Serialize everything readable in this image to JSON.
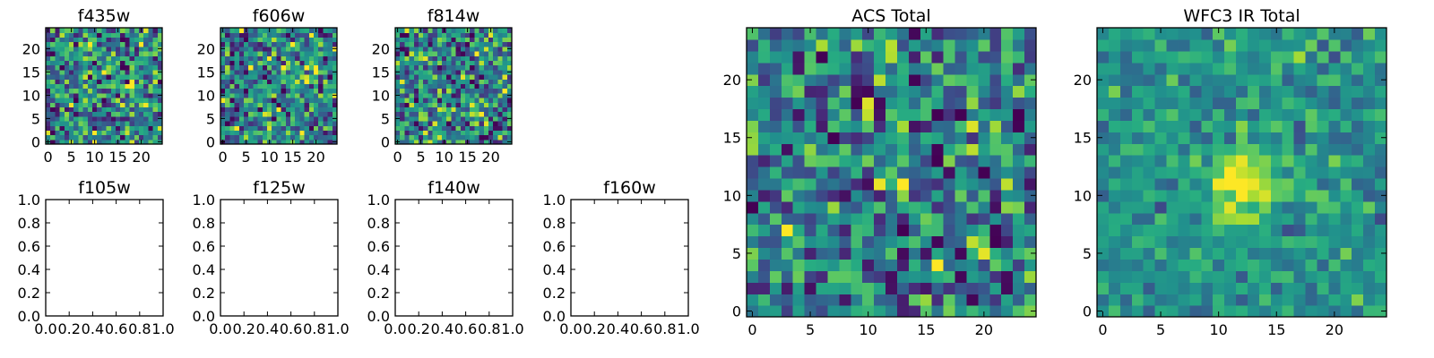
{
  "figure": {
    "background": "#ffffff",
    "colormap": "viridis",
    "panels": [
      {
        "id": "f435w",
        "title": "f435w"
      },
      {
        "id": "f606w",
        "title": "f606w"
      },
      {
        "id": "f814w",
        "title": "f814w"
      },
      {
        "id": "f105w",
        "title": "f105w"
      },
      {
        "id": "f125w",
        "title": "f125w"
      },
      {
        "id": "f140w",
        "title": "f140w"
      },
      {
        "id": "f160w",
        "title": "f160w"
      },
      {
        "id": "acs_total",
        "title": "ACS Total"
      },
      {
        "id": "wfc3_total",
        "title": "WFC3 IR Total"
      }
    ]
  },
  "chart_data": [
    {
      "panel": "f435w",
      "type": "heatmap",
      "title": "f435w",
      "grid_size": 25,
      "xlim": [
        -0.5,
        24.5
      ],
      "ylim": [
        -0.5,
        24.5
      ],
      "xticks": [
        0,
        5,
        10,
        15,
        20
      ],
      "yticks": [
        0,
        5,
        10,
        15,
        20
      ],
      "colormap": "viridis",
      "content": "noise image"
    },
    {
      "panel": "f606w",
      "type": "heatmap",
      "title": "f606w",
      "grid_size": 25,
      "xlim": [
        -0.5,
        24.5
      ],
      "ylim": [
        -0.5,
        24.5
      ],
      "xticks": [
        0,
        5,
        10,
        15,
        20
      ],
      "yticks": [
        0,
        5,
        10,
        15,
        20
      ],
      "colormap": "viridis",
      "content": "noise image"
    },
    {
      "panel": "f814w",
      "type": "heatmap",
      "title": "f814w",
      "grid_size": 25,
      "xlim": [
        -0.5,
        24.5
      ],
      "ylim": [
        -0.5,
        24.5
      ],
      "xticks": [
        0,
        5,
        10,
        15,
        20
      ],
      "yticks": [
        0,
        5,
        10,
        15,
        20
      ],
      "colormap": "viridis",
      "content": "noise image"
    },
    {
      "panel": "f105w",
      "type": "empty",
      "title": "f105w",
      "xlim": [
        0,
        1
      ],
      "ylim": [
        0,
        1
      ],
      "xticks": [
        "0.0",
        "0.2",
        "0.4",
        "0.6",
        "0.8",
        "1.0"
      ],
      "yticks": [
        "0.0",
        "0.2",
        "0.4",
        "0.6",
        "0.8",
        "1.0"
      ]
    },
    {
      "panel": "f125w",
      "type": "empty",
      "title": "f125w",
      "xlim": [
        0,
        1
      ],
      "ylim": [
        0,
        1
      ],
      "xticks": [
        "0.0",
        "0.2",
        "0.4",
        "0.6",
        "0.8",
        "1.0"
      ],
      "yticks": [
        "0.0",
        "0.2",
        "0.4",
        "0.6",
        "0.8",
        "1.0"
      ]
    },
    {
      "panel": "f140w",
      "type": "empty",
      "title": "f140w",
      "xlim": [
        0,
        1
      ],
      "ylim": [
        0,
        1
      ],
      "xticks": [
        "0.0",
        "0.2",
        "0.4",
        "0.6",
        "0.8",
        "1.0"
      ],
      "yticks": [
        "0.0",
        "0.2",
        "0.4",
        "0.6",
        "0.8",
        "1.0"
      ]
    },
    {
      "panel": "f160w",
      "type": "empty",
      "title": "f160w",
      "xlim": [
        0,
        1
      ],
      "ylim": [
        0,
        1
      ],
      "xticks": [
        "0.0",
        "0.2",
        "0.4",
        "0.6",
        "0.8",
        "1.0"
      ],
      "yticks": [
        "0.0",
        "0.2",
        "0.4",
        "0.6",
        "0.8",
        "1.0"
      ]
    },
    {
      "panel": "acs_total",
      "type": "heatmap",
      "title": "ACS Total",
      "grid_size": 25,
      "xlim": [
        -0.5,
        24.5
      ],
      "ylim": [
        -0.5,
        24.5
      ],
      "xticks": [
        0,
        5,
        10,
        15,
        20
      ],
      "yticks": [
        0,
        5,
        10,
        15,
        20
      ],
      "colormap": "viridis",
      "content": "noise image"
    },
    {
      "panel": "wfc3_total",
      "type": "heatmap",
      "title": "WFC3 IR Total",
      "grid_size": 25,
      "xlim": [
        -0.5,
        24.5
      ],
      "ylim": [
        -0.5,
        24.5
      ],
      "xticks": [
        0,
        5,
        10,
        15,
        20
      ],
      "yticks": [
        0,
        5,
        10,
        15,
        20
      ],
      "colormap": "viridis",
      "content": "noise image with a bright central source",
      "bright_source": {
        "x": 12,
        "y": 11
      }
    }
  ]
}
